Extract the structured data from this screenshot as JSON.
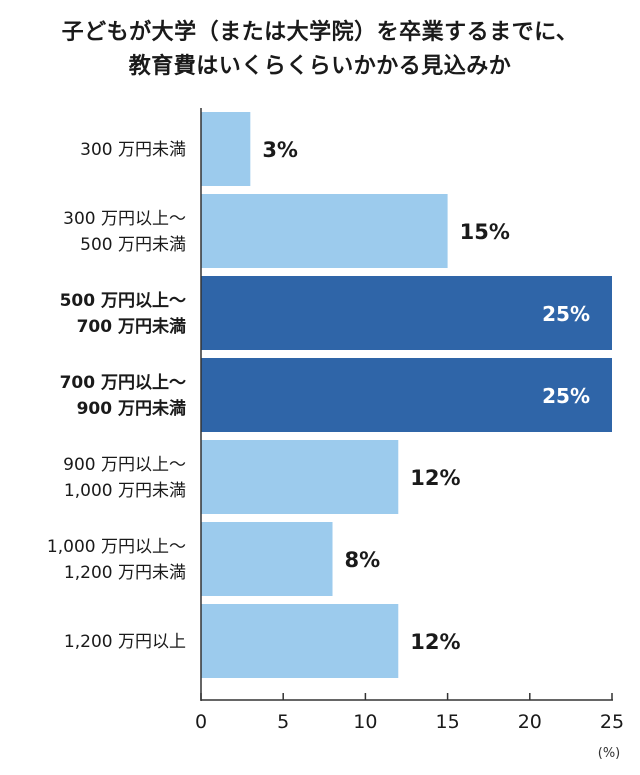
{
  "chart_data": {
    "type": "bar",
    "orientation": "horizontal",
    "title_lines": [
      "子どもが大学（または大学院）を卒業するまでに、",
      "教育費はいくらくらいかかる見込みか"
    ],
    "categories": [
      [
        "300 万円未満"
      ],
      [
        "300 万円以上～",
        "500 万円未満"
      ],
      [
        "500 万円以上～",
        "700 万円未満"
      ],
      [
        "700 万円以上～",
        "900 万円未満"
      ],
      [
        "900 万円以上～",
        "1,000 万円未満"
      ],
      [
        "1,000 万円以上～",
        "1,200 万円未満"
      ],
      [
        "1,200 万円以上"
      ]
    ],
    "values": [
      3,
      15,
      25,
      25,
      12,
      8,
      12
    ],
    "value_labels": [
      "3%",
      "15%",
      "25%",
      "25%",
      "12%",
      "8%",
      "12%"
    ],
    "highlighted": [
      false,
      false,
      true,
      true,
      false,
      false,
      false
    ],
    "xlim": [
      0,
      25
    ],
    "xticks": [
      "0",
      "5",
      "10",
      "15",
      "20",
      "25"
    ],
    "unit_label": "(%)",
    "colors": {
      "bar": "#9ccbed",
      "bar_highlight": "#2f65a8",
      "axis": "#333333",
      "label_on_highlight": "#ffffff"
    }
  }
}
